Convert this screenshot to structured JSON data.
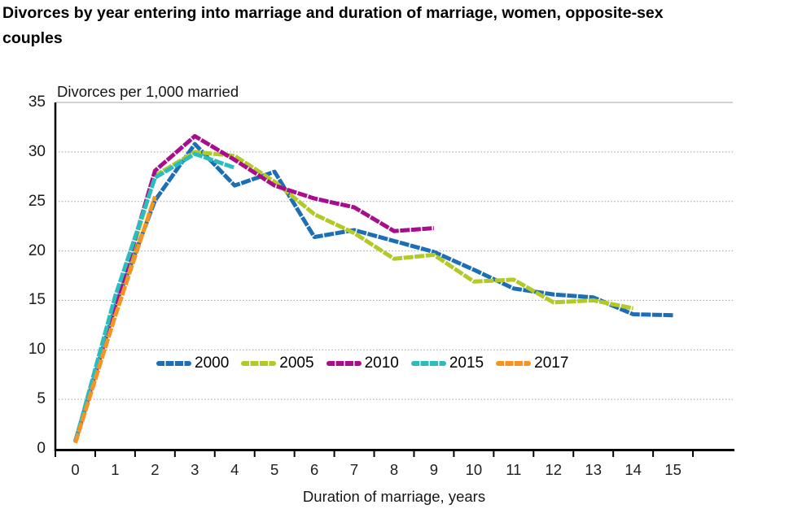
{
  "page": {
    "title_line1": "Divorces by year entering into marriage and duration of marriage, women, opposite-sex",
    "title_line2": "couples"
  },
  "chart_data": {
    "type": "line",
    "title": "Divorces by year entering into marriage and duration of marriage, women, opposite-sex couples",
    "unit_label": "Divorces per 1,000 married",
    "xlabel": "Duration of marriage, years",
    "ylabel": "Divorces per 1,000 married",
    "x": [
      0,
      1,
      2,
      3,
      4,
      5,
      6,
      7,
      8,
      9,
      10,
      11,
      12,
      13,
      14,
      15
    ],
    "x_ticks": [
      "0",
      "1",
      "2",
      "3",
      "4",
      "5",
      "6",
      "7",
      "8",
      "9",
      "10",
      "11",
      "12",
      "13",
      "14",
      "15"
    ],
    "y_ticks": [
      0,
      5,
      10,
      15,
      20,
      25,
      30,
      35
    ],
    "ylim": [
      0,
      35
    ],
    "xlim": [
      -0.5,
      15.5
    ],
    "grid": "horizontal-dotted",
    "legend_position": "inside-center-left",
    "series": [
      {
        "name": "2000",
        "color": "#1c6fb5",
        "values": [
          0.8,
          14.4,
          25.1,
          30.8,
          26.6,
          28.0,
          21.4,
          22.1,
          21.0,
          19.9,
          18.1,
          16.2,
          15.6,
          15.3,
          13.6,
          13.5
        ]
      },
      {
        "name": "2005",
        "color": "#b2c927",
        "values": [
          0.7,
          14.3,
          27.6,
          30.0,
          29.6,
          27.0,
          23.7,
          21.8,
          19.2,
          19.6,
          16.9,
          17.1,
          14.8,
          15.0,
          14.2
        ]
      },
      {
        "name": "2010",
        "color": "#a90d8c",
        "values": [
          0.7,
          14.4,
          28.1,
          31.6,
          29.2,
          26.6,
          25.3,
          24.4,
          22.0,
          22.3
        ]
      },
      {
        "name": "2015",
        "color": "#29bdbf",
        "values": [
          0.7,
          15.4,
          27.4,
          29.8,
          28.4
        ]
      },
      {
        "name": "2017",
        "color": "#f79421",
        "values": [
          0.6,
          13.4,
          25.5
        ]
      }
    ]
  },
  "colors": {
    "axis": "#000000",
    "grid_dotted": "#9c9c9c",
    "top_border": "#d2d2d2",
    "text": "#000000"
  }
}
